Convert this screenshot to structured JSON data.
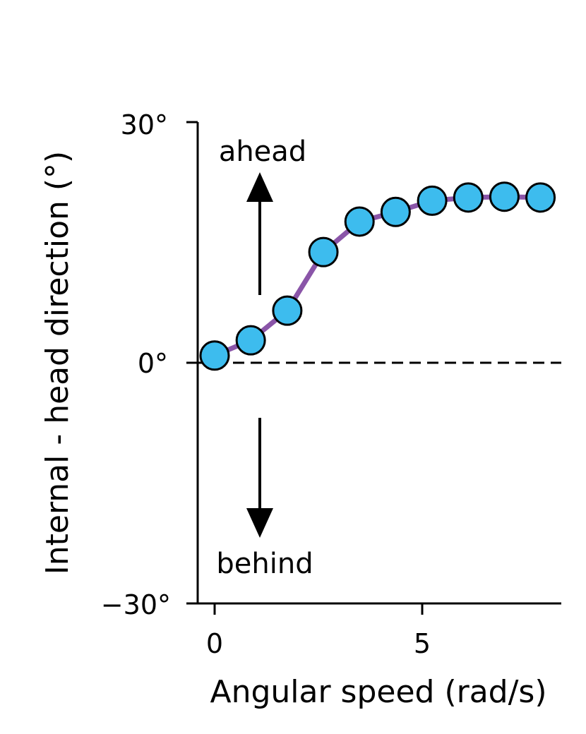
{
  "chart_data": {
    "type": "line",
    "title": "",
    "xlabel": "Angular speed (rad/s)",
    "ylabel": "Internal - head direction (°)",
    "xlim": [
      -0.4,
      8.3
    ],
    "ylim": [
      -30,
      30
    ],
    "xticks": [
      0,
      5
    ],
    "xtick_labels": [
      "0",
      "5"
    ],
    "yticks": [
      -30,
      0,
      30
    ],
    "ytick_labels": [
      "−30°",
      "0°",
      "30°"
    ],
    "series": [
      {
        "x": [
          0.0,
          0.87,
          1.75,
          2.62,
          3.49,
          4.36,
          5.24,
          6.11,
          6.98,
          7.85
        ],
        "y": [
          0.9,
          2.8,
          6.5,
          13.8,
          17.6,
          18.8,
          20.2,
          20.6,
          20.7,
          20.6
        ]
      }
    ],
    "reference_line": {
      "y": 0,
      "style": "dashed"
    },
    "annotations": [
      {
        "text": "ahead",
        "arrow": "up"
      },
      {
        "text": "behind",
        "arrow": "down"
      }
    ],
    "colors": {
      "line": "#8a55a8",
      "marker_fill": "#3dbcee",
      "marker_edge": "#000000",
      "axes": "#000000"
    },
    "grid": false,
    "legend": "none"
  }
}
